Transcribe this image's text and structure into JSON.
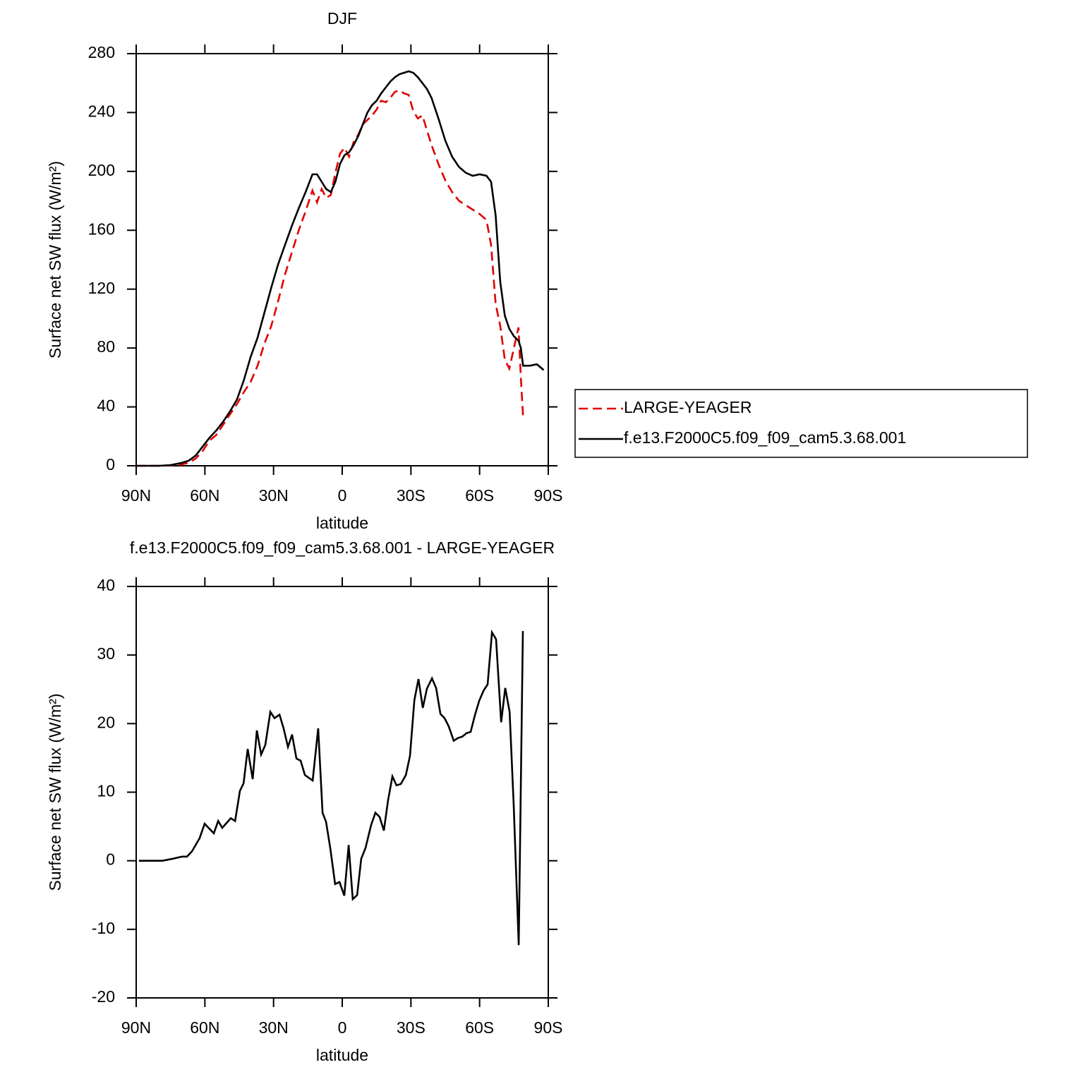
{
  "chart_data": [
    {
      "type": "line",
      "title": "DJF",
      "x_label": "latitude",
      "y_label": "Surface net SW flux (W/m²)",
      "x": [
        90,
        80,
        75,
        70,
        67,
        64,
        61,
        58,
        55,
        52,
        49,
        46,
        43,
        40,
        37,
        34,
        31,
        28,
        25,
        22,
        19,
        16,
        13,
        11,
        9,
        7,
        5,
        3,
        1,
        -1,
        -3,
        -5,
        -7,
        -9,
        -11,
        -13,
        -15,
        -17,
        -19,
        -21,
        -23,
        -25,
        -27,
        -29,
        -31,
        -33,
        -35,
        -37,
        -39,
        -42,
        -45,
        -48,
        -51,
        -54,
        -57,
        -60,
        -63,
        -65,
        -67,
        -69,
        -71,
        -73,
        -75,
        -77,
        -78,
        -79,
        -80,
        -82,
        -85,
        -88
      ],
      "series": [
        {
          "name": "LARGE-YEAGER",
          "color": "#e00000",
          "dash": "dashed",
          "values": [
            0,
            0,
            0.3,
            1,
            2,
            5,
            10,
            17,
            21,
            28,
            35,
            42,
            50,
            57,
            68,
            83,
            95,
            112,
            130,
            145,
            160,
            173,
            187,
            179,
            188,
            182,
            184,
            199,
            212,
            216,
            210,
            220,
            225,
            232,
            235,
            238,
            242,
            248,
            247,
            250,
            254,
            255,
            253,
            252,
            241,
            236,
            238,
            228,
            218,
            205,
            194,
            186,
            180,
            177,
            174,
            171,
            167,
            150,
            110,
            95,
            72,
            66,
            80,
            94,
            60,
            33,
            null,
            null,
            null,
            null
          ]
        },
        {
          "name": "f.e13.F2000C5.f09_f09_cam5.3.68.001",
          "color": "#000000",
          "dash": "solid",
          "values": [
            0,
            0,
            0.5,
            2,
            3.5,
            7,
            13,
            19,
            24,
            30,
            37,
            45,
            58,
            74,
            87,
            104,
            121,
            137,
            150,
            163,
            175,
            186,
            198,
            198,
            193,
            188,
            186,
            193,
            205,
            211,
            213,
            218,
            224,
            232,
            240,
            245,
            248,
            253,
            257,
            261,
            264,
            266,
            267,
            268,
            267,
            264,
            260,
            256,
            250,
            236,
            221,
            210,
            203,
            199,
            197,
            198,
            197,
            193,
            170,
            125,
            102,
            93,
            88,
            85,
            80,
            68,
            68,
            68,
            69,
            65
          ]
        }
      ],
      "xlim": [
        90,
        -90
      ],
      "xticks": [
        {
          "value": 90,
          "label": "90N"
        },
        {
          "value": 60,
          "label": "60N"
        },
        {
          "value": 30,
          "label": "30N"
        },
        0,
        {
          "value": -30,
          "label": "30S"
        },
        {
          "value": -60,
          "label": "60S"
        },
        {
          "value": -90,
          "label": "90S"
        }
      ],
      "ylim": [
        0,
        280
      ],
      "yticks": [
        0,
        40,
        80,
        120,
        160,
        200,
        240,
        280
      ],
      "legend": "right"
    },
    {
      "type": "line",
      "title": "f.e13.F2000C5.f09_f09_cam5.3.68.001 - LARGE-YEAGER",
      "x_label": "latitude",
      "y_label": "Surface net SW flux (W/m²)",
      "x": [
        88.8,
        78.6,
        74,
        70,
        67.8,
        65.6,
        62.3,
        60.1,
        56.1,
        54.2,
        52.4,
        48.7,
        46.8,
        44.7,
        43.1,
        41.3,
        39.1,
        37.3,
        35.4,
        33.6,
        31.4,
        29.6,
        27.4,
        25.6,
        23.7,
        21.9,
        20,
        18.2,
        16.3,
        12.9,
        10.5,
        8.6,
        7.1,
        5.2,
        3.1,
        1.2,
        -0.9,
        -2.8,
        -4.6,
        -6.5,
        -8.3,
        -10.2,
        -12.6,
        -14.5,
        -16.3,
        -18.2,
        -20,
        -21.9,
        -23.7,
        -25.6,
        -27.8,
        -29.6,
        -31.5,
        -33.3,
        -35.2,
        -37,
        -39.2,
        -41,
        -42.9,
        -44.7,
        -46.5,
        -48.7,
        -50.6,
        -52.4,
        -54.3,
        -56.1,
        -58,
        -59.8,
        -61.7,
        -63.5,
        -65.4,
        -67.2,
        -69.4,
        -71.2,
        -73.1,
        -74.9,
        -77.1,
        -78.9
      ],
      "values": [
        0,
        0,
        0.3,
        0.6,
        0.6,
        1.4,
        3.3,
        5.4,
        4,
        5.8,
        4.8,
        6.2,
        5.8,
        10.2,
        11.3,
        16.3,
        11.9,
        19,
        15.5,
        16.9,
        21.7,
        20.8,
        21.3,
        19.3,
        16.6,
        18.4,
        14.9,
        14.6,
        12.5,
        11.7,
        19.3,
        7,
        5.7,
        1.8,
        -3.4,
        -3.1,
        -5.1,
        2.3,
        -5.6,
        -5,
        0.3,
        1.9,
        5.2,
        7,
        6.4,
        4.4,
        8.8,
        12.3,
        11,
        11.2,
        12.5,
        15.3,
        23.4,
        26.5,
        22.3,
        25.1,
        26.6,
        25.2,
        21.4,
        20.8,
        19.6,
        17.5,
        17.9,
        18.1,
        18.6,
        18.8,
        21.3,
        23.3,
        24.8,
        25.7,
        33.3,
        32.3,
        20.2,
        25.2,
        21.7,
        8.1,
        -12.3,
        33.5
      ],
      "color": "#000000",
      "dash": "solid",
      "xlim": [
        90,
        -90
      ],
      "xticks": [
        {
          "value": 90,
          "label": "90N"
        },
        {
          "value": 60,
          "label": "60N"
        },
        {
          "value": 30,
          "label": "30N"
        },
        0,
        {
          "value": -30,
          "label": "30S"
        },
        {
          "value": -60,
          "label": "60S"
        },
        {
          "value": -90,
          "label": "90S"
        }
      ],
      "ylim": [
        -20,
        40
      ],
      "yticks": [
        -20,
        -10,
        0,
        10,
        20,
        30,
        40
      ]
    }
  ]
}
